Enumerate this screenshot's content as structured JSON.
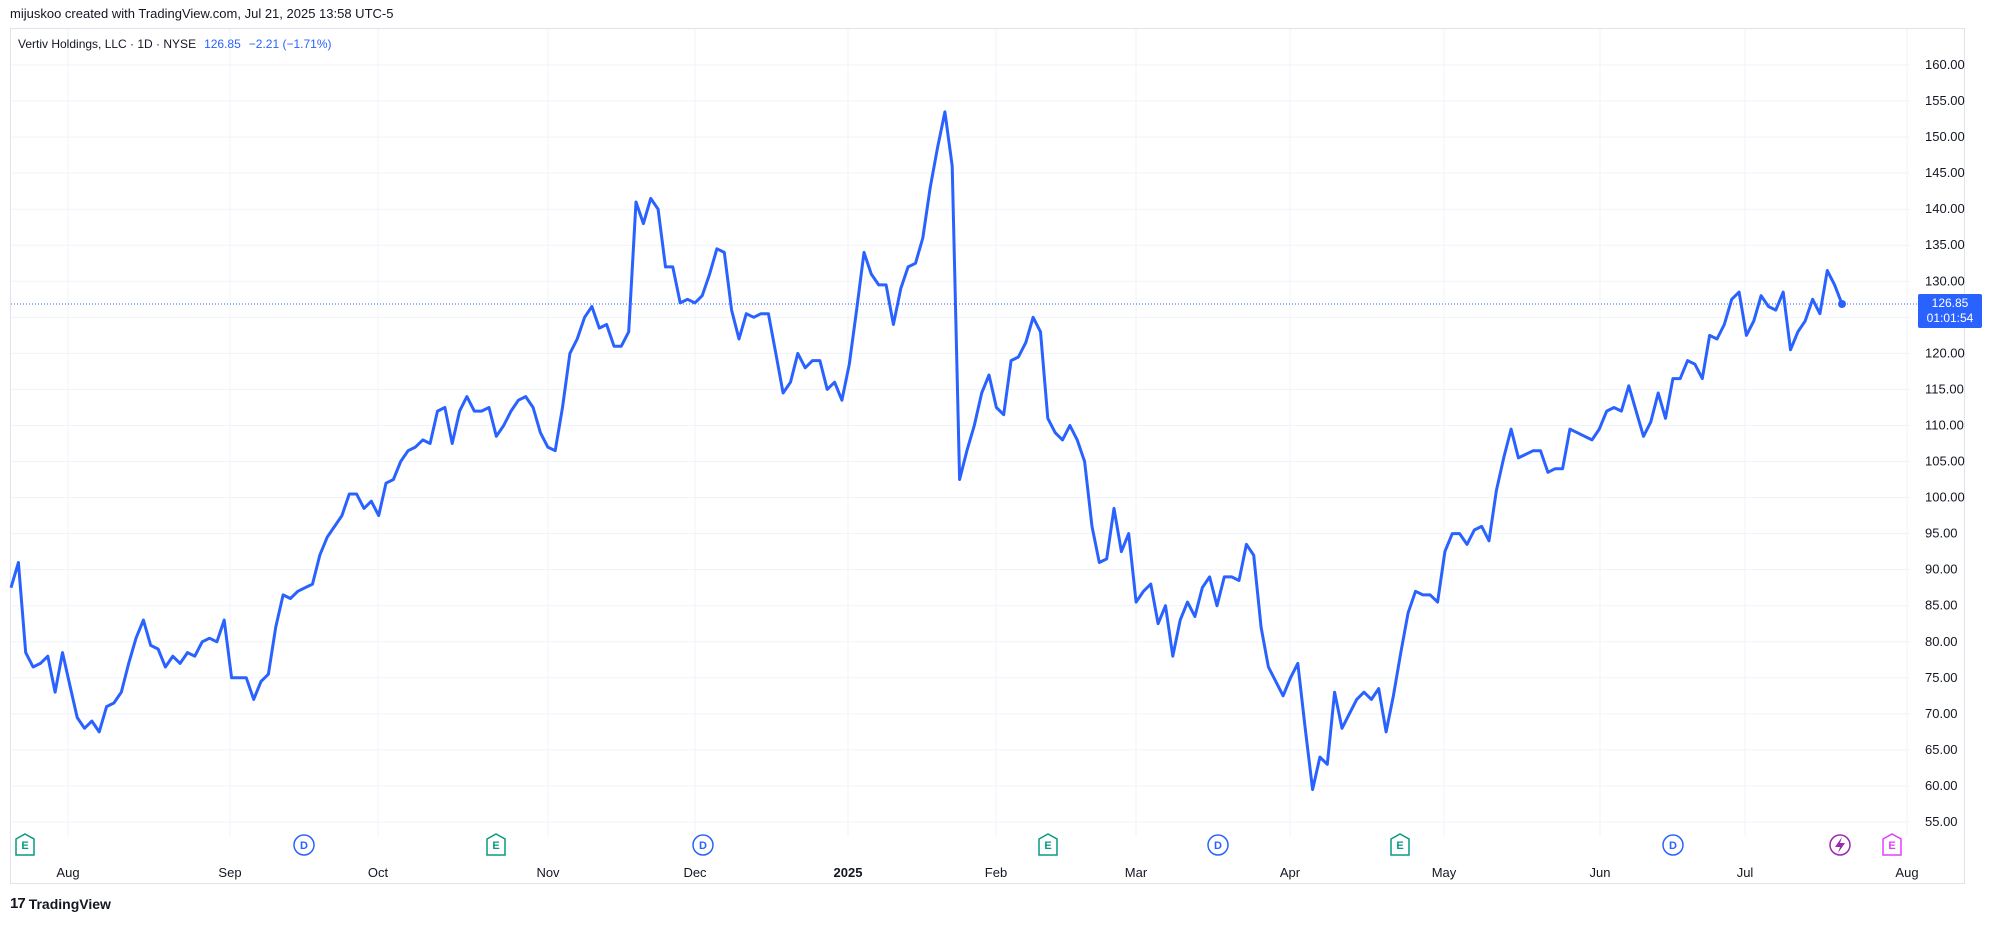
{
  "caption": "mijuskoo created with TradingView.com, Jul 21, 2025 13:58 UTC-5",
  "legend": {
    "symbol": "Vertiv Holdings, LLC · 1D · NYSE",
    "price": "126.85",
    "change": "−2.21 (−1.71%)"
  },
  "price_tag": {
    "price": "126.85",
    "countdown": "01:01:54"
  },
  "footer": {
    "logo": "17",
    "brand": "TradingView"
  },
  "colors": {
    "line": "#2962ff",
    "grid": "#f0f3fa",
    "earnings": "#089981",
    "dividend": "#2962ff",
    "upcoming_earnings": "#e040fb"
  },
  "chart_data": {
    "type": "line",
    "title": "Vertiv Holdings, LLC · 1D · NYSE",
    "xlabel": "",
    "ylabel": "",
    "ylim": [
      53,
      162
    ],
    "y_ticks": [
      "160.00",
      "155.00",
      "150.00",
      "145.00",
      "140.00",
      "135.00",
      "130.00",
      "125.00",
      "120.00",
      "115.00",
      "110.00",
      "105.00",
      "100.00",
      "95.00",
      "90.00",
      "85.00",
      "80.00",
      "75.00",
      "70.00",
      "65.00",
      "60.00",
      "55.00"
    ],
    "x_ticks": [
      {
        "label": "Aug",
        "bold": false
      },
      {
        "label": "Sep",
        "bold": false
      },
      {
        "label": "Oct",
        "bold": false
      },
      {
        "label": "Nov",
        "bold": false
      },
      {
        "label": "Dec",
        "bold": false
      },
      {
        "label": "2025",
        "bold": true
      },
      {
        "label": "Feb",
        "bold": false
      },
      {
        "label": "Mar",
        "bold": false
      },
      {
        "label": "Apr",
        "bold": false
      },
      {
        "label": "May",
        "bold": false
      },
      {
        "label": "Jun",
        "bold": false
      },
      {
        "label": "Jul",
        "bold": false
      },
      {
        "label": "Aug",
        "bold": false
      }
    ],
    "events": [
      {
        "label": "E",
        "kind": "earnings",
        "date": "2024-07-24"
      },
      {
        "label": "D",
        "kind": "dividend",
        "date": "2024-09-10"
      },
      {
        "label": "E",
        "kind": "earnings",
        "date": "2024-10-23"
      },
      {
        "label": "D",
        "kind": "dividend",
        "date": "2024-12-03"
      },
      {
        "label": "E",
        "kind": "earnings",
        "date": "2025-02-12"
      },
      {
        "label": "D",
        "kind": "dividend",
        "date": "2025-03-18"
      },
      {
        "label": "E",
        "kind": "earnings",
        "date": "2025-04-23"
      },
      {
        "label": "D",
        "kind": "dividend",
        "date": "2025-06-10"
      },
      {
        "label": "E",
        "kind": "upcoming_earnings",
        "date": "2025-07-30"
      }
    ],
    "last_value": 126.85,
    "series": [
      {
        "values": [
          87.5,
          91.0,
          78.5,
          76.5,
          77.0,
          78.0,
          73.0,
          78.5,
          74.0,
          69.5,
          68.0,
          69.0,
          67.5,
          71.0,
          71.5,
          73.0,
          77.0,
          80.5,
          83.0,
          79.5,
          79.0,
          76.5,
          78.0,
          77.0,
          78.5,
          78.0,
          80.0,
          80.5,
          80.0,
          83.0,
          75.0,
          75.0,
          75.0,
          72.0,
          74.5,
          75.5,
          82.0,
          86.5,
          86.0,
          87.0,
          87.5,
          88.0,
          92.0,
          94.5,
          96.0,
          97.5,
          100.5,
          100.5,
          98.5,
          99.5,
          97.5,
          102.0,
          102.5,
          105.0,
          106.5,
          107.0,
          108.0,
          107.5,
          112.0,
          112.5,
          107.5,
          112.0,
          114.0,
          112.0,
          112.0,
          112.5,
          108.5,
          110.0,
          112.0,
          113.5,
          114.0,
          112.5,
          109.0,
          107.0,
          106.5,
          112.5,
          120.0,
          122.0,
          125.0,
          126.5,
          123.5,
          124.0,
          121.0,
          121.0,
          123.0,
          141.0,
          138.0,
          141.5,
          140.0,
          132.0,
          132.0,
          127.0,
          127.5,
          127.0,
          128.0,
          131.0,
          134.5,
          134.0,
          126.0,
          122.0,
          125.5,
          125.0,
          125.5,
          125.5,
          120.0,
          114.5,
          116.0,
          120.0,
          118.0,
          119.0,
          119.0,
          115.0,
          116.0,
          113.5,
          118.5,
          126.0,
          134.0,
          131.0,
          129.5,
          129.5,
          124.0,
          129.0,
          132.0,
          132.5,
          136.0,
          143.0,
          148.5,
          153.5,
          146.0,
          102.5,
          106.5,
          110.0,
          114.5,
          117.0,
          112.5,
          111.5,
          119.0,
          119.5,
          121.5,
          125.0,
          123.0,
          111.0,
          109.0,
          108.0,
          110.0,
          108.0,
          105.0,
          96.0,
          91.0,
          91.5,
          98.5,
          92.5,
          95.0,
          85.5,
          87.0,
          88.0,
          82.5,
          85.0,
          78.0,
          83.0,
          85.5,
          83.5,
          87.5,
          89.0,
          85.0,
          89.0,
          89.0,
          88.5,
          93.5,
          92.0,
          82.0,
          76.5,
          74.5,
          72.5,
          75.0,
          77.0,
          68.0,
          59.5,
          64.0,
          63.0,
          73.0,
          68.0,
          70.0,
          72.0,
          73.0,
          72.0,
          73.5,
          67.5,
          72.5,
          78.5,
          84.0,
          87.0,
          86.5,
          86.5,
          85.5,
          92.5,
          95.0,
          95.0,
          93.5,
          95.5,
          96.0,
          94.0,
          101.0,
          105.5,
          109.5,
          105.5,
          106.0,
          106.5,
          106.5,
          103.5,
          104.0,
          104.0,
          109.5,
          109.0,
          108.5,
          108.0,
          109.5,
          112.0,
          112.5,
          112.0,
          115.5,
          112.0,
          108.5,
          110.5,
          114.5,
          111.0,
          116.5,
          116.5,
          119.0,
          118.5,
          116.5,
          122.5,
          122.0,
          124.0,
          127.5,
          128.5,
          122.5,
          124.5,
          128.0,
          126.5,
          126.0,
          128.5,
          120.5,
          123.0,
          124.5,
          127.5,
          125.5,
          131.5,
          129.5,
          126.85
        ]
      }
    ]
  }
}
